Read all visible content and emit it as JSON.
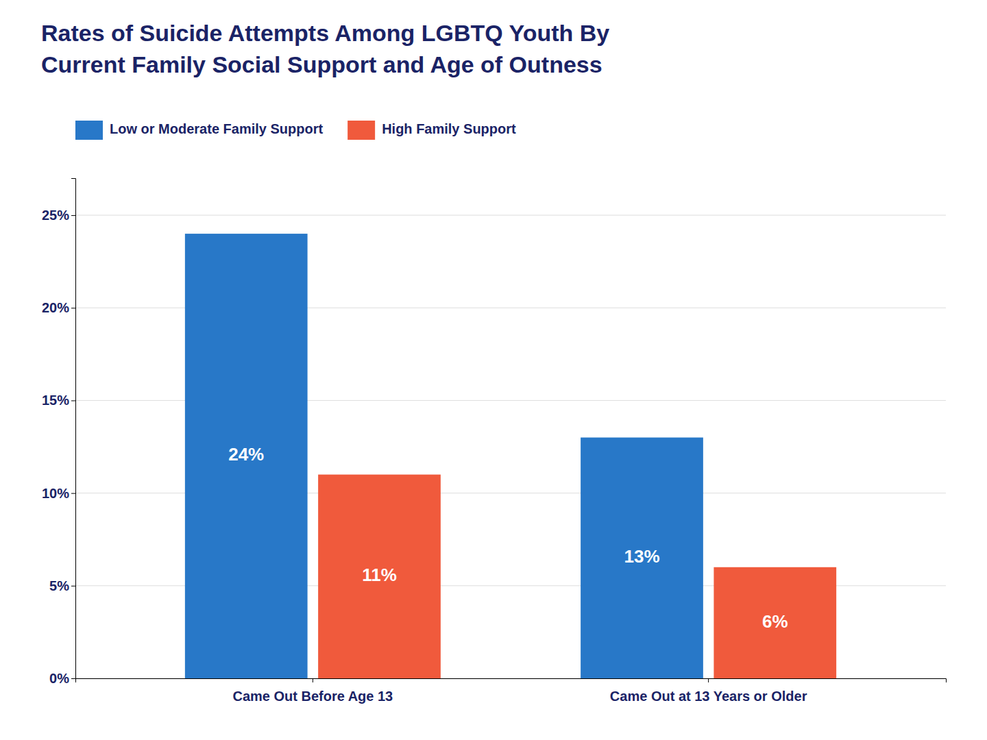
{
  "chart_data": {
    "type": "bar",
    "title": "Rates of Suicide Attempts Among LGBTQ Youth By\nCurrent Family Social Support and Age of Outness",
    "categories": [
      "Came Out Before Age 13",
      "Came Out at 13 Years or Older"
    ],
    "series": [
      {
        "name": "Low or Moderate Family Support",
        "color": "#2878c8",
        "values": [
          24,
          13
        ],
        "value_labels": [
          "24%",
          "13%"
        ]
      },
      {
        "name": "High Family Support",
        "color": "#f05a3c",
        "values": [
          11,
          6
        ],
        "value_labels": [
          "11%",
          "6%"
        ]
      }
    ],
    "ylim": [
      0,
      27
    ],
    "yticks": [
      {
        "value": 0,
        "label": "0%"
      },
      {
        "value": 5,
        "label": "5%"
      },
      {
        "value": 10,
        "label": "10%"
      },
      {
        "value": 15,
        "label": "15%"
      },
      {
        "value": 20,
        "label": "20%"
      },
      {
        "value": 25,
        "label": "25%"
      }
    ],
    "grid": true,
    "legend": "upper left",
    "data_labels": true
  }
}
